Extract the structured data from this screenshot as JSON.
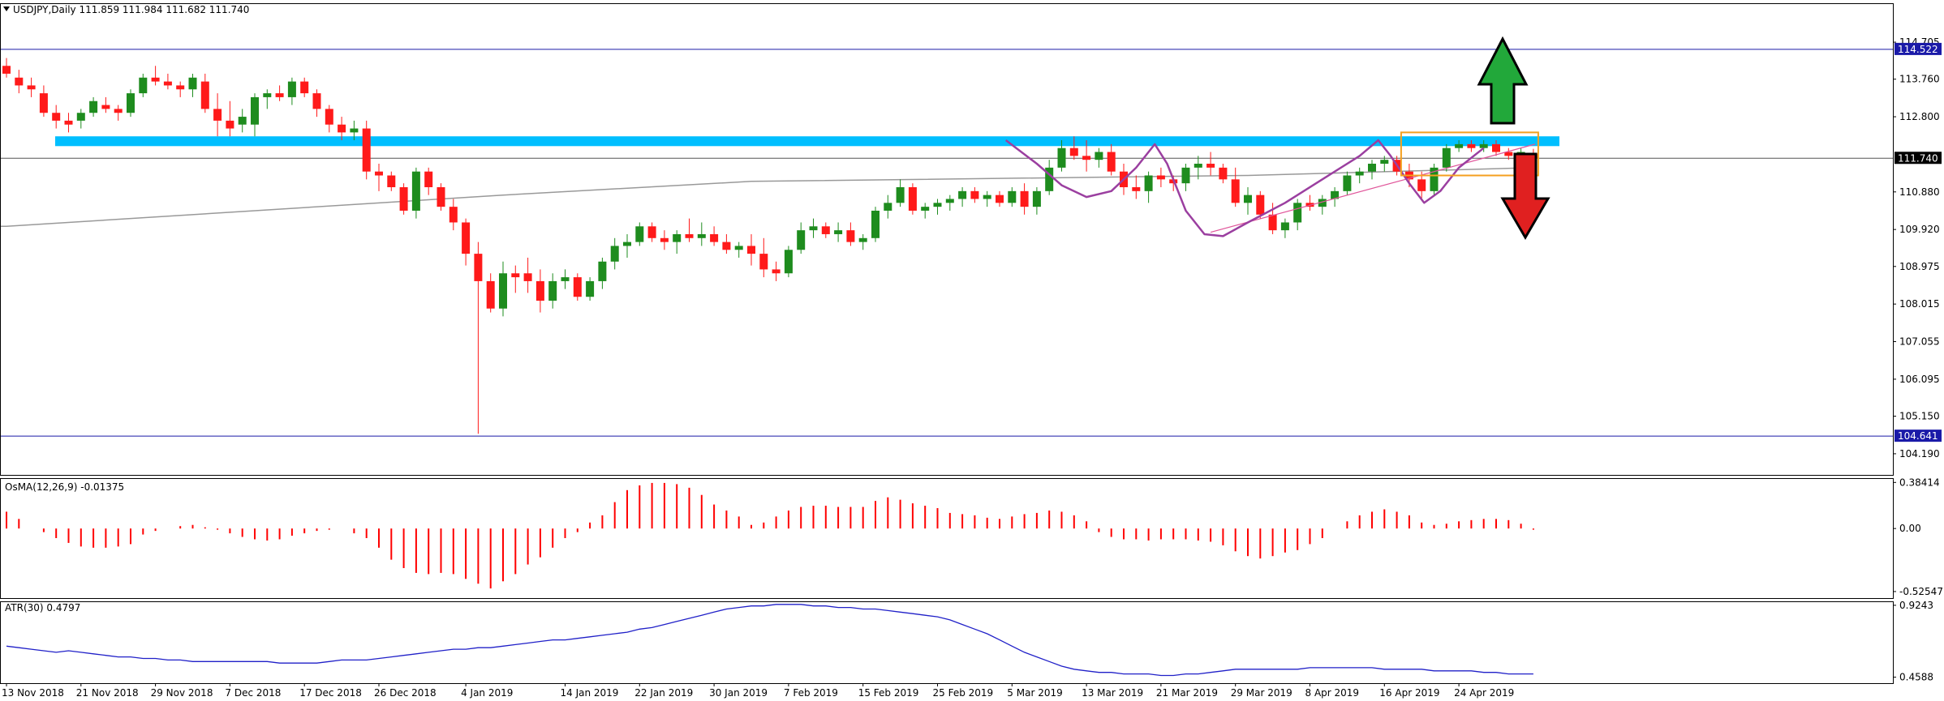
{
  "colors": {
    "up": "#1e8c1e",
    "down": "#ff1a1a",
    "resistance_zone": "#00bfff",
    "hline": "#1a1aa8",
    "ma": "#999999",
    "pattern": "#9b3fa0",
    "trendline": "#e0559a",
    "box": "#f4a020",
    "arrow_up": "#22a83a",
    "arrow_down": "#e02020",
    "atr": "#2020c8",
    "osma": "#ff0000"
  },
  "headers": {
    "price": "USDJPY,Daily  111.859 111.984 111.682 111.740",
    "osma": "OsMA(12,26,9) -0.01375",
    "atr": "ATR(30) 0.4797"
  },
  "chart_data": [
    {
      "type": "candlestick",
      "title": "USDJPY,Daily",
      "ohlc_readout": [
        111.859,
        111.984,
        111.682,
        111.74
      ],
      "y_ticks": [
        "114.705",
        "113.760",
        "112.800",
        "110.880",
        "109.920",
        "108.975",
        "108.015",
        "107.055",
        "106.095",
        "105.150",
        "104.190"
      ],
      "ylim": [
        103.65,
        115.7
      ],
      "current_price_tag": "111.740",
      "level_tags": [
        "114.522",
        "104.641"
      ],
      "x_ticks": [
        "13 Nov 2018",
        "21 Nov 2018",
        "29 Nov 2018",
        "7 Dec 2018",
        "17 Dec 2018",
        "26 Dec 2018",
        "4 Jan 2019",
        "14 Jan 2019",
        "22 Jan 2019",
        "30 Jan 2019",
        "7 Feb 2019",
        "15 Feb 2019",
        "25 Feb 2019",
        "5 Mar 2019",
        "13 Mar 2019",
        "21 Mar 2019",
        "29 Mar 2019",
        "8 Apr 2019",
        "16 Apr 2019",
        "24 Apr 2019"
      ],
      "candles": [
        [
          114.1,
          114.3,
          113.8,
          113.9
        ],
        [
          113.8,
          114.0,
          113.4,
          113.6
        ],
        [
          113.6,
          113.8,
          113.3,
          113.5
        ],
        [
          113.4,
          113.6,
          112.8,
          112.9
        ],
        [
          112.9,
          113.1,
          112.5,
          112.7
        ],
        [
          112.7,
          112.9,
          112.4,
          112.6
        ],
        [
          112.7,
          113.0,
          112.5,
          112.9
        ],
        [
          112.9,
          113.3,
          112.8,
          113.2
        ],
        [
          113.1,
          113.3,
          112.9,
          113.0
        ],
        [
          113.0,
          113.1,
          112.7,
          112.9
        ],
        [
          112.9,
          113.5,
          112.8,
          113.4
        ],
        [
          113.4,
          113.9,
          113.3,
          113.8
        ],
        [
          113.8,
          114.1,
          113.6,
          113.7
        ],
        [
          113.7,
          113.9,
          113.5,
          113.6
        ],
        [
          113.6,
          113.7,
          113.3,
          113.5
        ],
        [
          113.5,
          113.9,
          113.3,
          113.8
        ],
        [
          113.7,
          113.9,
          112.9,
          113.0
        ],
        [
          113.0,
          113.4,
          112.3,
          112.7
        ],
        [
          112.7,
          113.2,
          112.3,
          112.5
        ],
        [
          112.6,
          113.0,
          112.4,
          112.8
        ],
        [
          112.6,
          113.4,
          112.3,
          113.3
        ],
        [
          113.3,
          113.5,
          113.0,
          113.4
        ],
        [
          113.4,
          113.6,
          113.2,
          113.3
        ],
        [
          113.3,
          113.8,
          113.1,
          113.7
        ],
        [
          113.7,
          113.8,
          113.3,
          113.4
        ],
        [
          113.4,
          113.5,
          112.8,
          113.0
        ],
        [
          113.0,
          113.1,
          112.4,
          112.6
        ],
        [
          112.6,
          112.8,
          112.2,
          112.4
        ],
        [
          112.4,
          112.7,
          112.2,
          112.5
        ],
        [
          112.5,
          112.7,
          111.2,
          111.4
        ],
        [
          111.4,
          111.6,
          110.9,
          111.3
        ],
        [
          111.3,
          111.4,
          110.9,
          111.0
        ],
        [
          111.0,
          111.1,
          110.3,
          110.4
        ],
        [
          110.4,
          111.5,
          110.2,
          111.4
        ],
        [
          111.4,
          111.5,
          110.8,
          111.0
        ],
        [
          111.0,
          111.1,
          110.4,
          110.5
        ],
        [
          110.5,
          110.7,
          109.9,
          110.1
        ],
        [
          110.1,
          110.2,
          109.0,
          109.3
        ],
        [
          109.3,
          109.6,
          104.7,
          108.6
        ],
        [
          108.6,
          108.8,
          107.8,
          107.9
        ],
        [
          107.9,
          109.1,
          107.7,
          108.8
        ],
        [
          108.8,
          109.0,
          108.3,
          108.7
        ],
        [
          108.8,
          109.2,
          108.3,
          108.6
        ],
        [
          108.6,
          108.9,
          107.8,
          108.1
        ],
        [
          108.1,
          108.8,
          107.9,
          108.6
        ],
        [
          108.6,
          108.9,
          108.4,
          108.7
        ],
        [
          108.7,
          108.8,
          108.1,
          108.2
        ],
        [
          108.2,
          108.7,
          108.1,
          108.6
        ],
        [
          108.6,
          109.2,
          108.4,
          109.1
        ],
        [
          109.1,
          109.7,
          108.9,
          109.5
        ],
        [
          109.5,
          109.8,
          109.2,
          109.6
        ],
        [
          109.6,
          110.1,
          109.5,
          110.0
        ],
        [
          110.0,
          110.1,
          109.6,
          109.7
        ],
        [
          109.7,
          109.9,
          109.4,
          109.6
        ],
        [
          109.6,
          109.9,
          109.3,
          109.8
        ],
        [
          109.8,
          110.2,
          109.6,
          109.7
        ],
        [
          109.7,
          110.1,
          109.5,
          109.8
        ],
        [
          109.8,
          110.0,
          109.5,
          109.6
        ],
        [
          109.6,
          109.8,
          109.3,
          109.4
        ],
        [
          109.4,
          109.6,
          109.2,
          109.5
        ],
        [
          109.5,
          109.8,
          109.0,
          109.3
        ],
        [
          109.3,
          109.7,
          108.7,
          108.9
        ],
        [
          108.9,
          109.1,
          108.6,
          108.8
        ],
        [
          108.8,
          109.5,
          108.7,
          109.4
        ],
        [
          109.4,
          110.1,
          109.3,
          109.9
        ],
        [
          109.9,
          110.2,
          109.7,
          110.0
        ],
        [
          110.0,
          110.1,
          109.7,
          109.8
        ],
        [
          109.8,
          110.1,
          109.6,
          109.9
        ],
        [
          109.9,
          110.1,
          109.5,
          109.6
        ],
        [
          109.6,
          109.8,
          109.4,
          109.7
        ],
        [
          109.7,
          110.5,
          109.6,
          110.4
        ],
        [
          110.4,
          110.8,
          110.2,
          110.6
        ],
        [
          110.6,
          111.2,
          110.5,
          111.0
        ],
        [
          111.0,
          111.1,
          110.3,
          110.4
        ],
        [
          110.4,
          110.6,
          110.2,
          110.5
        ],
        [
          110.5,
          110.7,
          110.3,
          110.6
        ],
        [
          110.6,
          110.8,
          110.4,
          110.7
        ],
        [
          110.7,
          111.0,
          110.5,
          110.9
        ],
        [
          110.9,
          111.0,
          110.6,
          110.7
        ],
        [
          110.7,
          110.9,
          110.5,
          110.8
        ],
        [
          110.8,
          110.9,
          110.5,
          110.6
        ],
        [
          110.6,
          111.0,
          110.5,
          110.9
        ],
        [
          110.9,
          111.1,
          110.3,
          110.5
        ],
        [
          110.5,
          111.0,
          110.3,
          110.9
        ],
        [
          110.9,
          111.7,
          110.8,
          111.5
        ],
        [
          111.5,
          112.2,
          111.4,
          112.0
        ],
        [
          112.0,
          112.3,
          111.7,
          111.8
        ],
        [
          111.8,
          112.2,
          111.4,
          111.7
        ],
        [
          111.7,
          112.0,
          111.5,
          111.9
        ],
        [
          111.9,
          112.1,
          111.3,
          111.4
        ],
        [
          111.4,
          111.6,
          110.8,
          111.0
        ],
        [
          111.0,
          111.3,
          110.7,
          110.9
        ],
        [
          110.9,
          111.4,
          110.6,
          111.3
        ],
        [
          111.3,
          111.5,
          111.0,
          111.2
        ],
        [
          111.2,
          111.3,
          110.9,
          111.1
        ],
        [
          111.1,
          111.6,
          110.9,
          111.5
        ],
        [
          111.5,
          111.8,
          111.2,
          111.6
        ],
        [
          111.6,
          111.9,
          111.3,
          111.5
        ],
        [
          111.5,
          111.6,
          111.1,
          111.2
        ],
        [
          111.2,
          111.5,
          110.5,
          110.6
        ],
        [
          110.6,
          111.0,
          110.3,
          110.8
        ],
        [
          110.8,
          110.9,
          110.2,
          110.3
        ],
        [
          110.3,
          110.6,
          109.8,
          109.9
        ],
        [
          109.9,
          110.2,
          109.7,
          110.1
        ],
        [
          110.1,
          110.7,
          109.9,
          110.6
        ],
        [
          110.6,
          110.8,
          110.4,
          110.5
        ],
        [
          110.5,
          110.8,
          110.3,
          110.7
        ],
        [
          110.7,
          111.0,
          110.5,
          110.9
        ],
        [
          110.9,
          111.4,
          110.8,
          111.3
        ],
        [
          111.3,
          111.5,
          111.1,
          111.4
        ],
        [
          111.4,
          111.7,
          111.2,
          111.6
        ],
        [
          111.6,
          111.8,
          111.4,
          111.7
        ],
        [
          111.7,
          111.8,
          111.3,
          111.4
        ],
        [
          111.4,
          111.6,
          111.0,
          111.2
        ],
        [
          111.2,
          111.4,
          110.7,
          110.9
        ],
        [
          110.9,
          111.6,
          110.8,
          111.5
        ],
        [
          111.5,
          112.1,
          111.4,
          112.0
        ],
        [
          112.0,
          112.2,
          111.9,
          112.1
        ],
        [
          112.1,
          112.2,
          111.9,
          112.0
        ],
        [
          112.0,
          112.2,
          111.9,
          112.1
        ],
        [
          112.1,
          112.2,
          111.8,
          111.9
        ],
        [
          111.9,
          112.0,
          111.7,
          111.8
        ],
        [
          111.8,
          112.0,
          111.7,
          111.9
        ],
        [
          111.86,
          111.98,
          111.68,
          111.74
        ]
      ],
      "ma_line": [
        [
          0,
          110.0
        ],
        [
          40,
          110.8
        ],
        [
          60,
          111.15
        ],
        [
          100,
          111.3
        ],
        [
          123,
          111.5
        ]
      ],
      "horizontal_levels": [
        114.522,
        104.641,
        111.74
      ],
      "resistance_zone": [
        112.05,
        112.3
      ],
      "consolidation_box": {
        "from_candle": 113,
        "to_candle": 123,
        "low": 111.3,
        "high": 112.4
      }
    },
    {
      "type": "bar",
      "title": "OsMA(12,26,9)",
      "last_value": -0.01375,
      "y_ticks": [
        "0.38414",
        "0.00",
        "-0.52547"
      ],
      "ylim": [
        -0.58,
        0.42
      ],
      "values": [
        0.14,
        0.08,
        0.0,
        -0.03,
        -0.08,
        -0.12,
        -0.15,
        -0.16,
        -0.16,
        -0.15,
        -0.13,
        -0.05,
        -0.02,
        0.0,
        0.02,
        0.03,
        0.01,
        -0.01,
        -0.04,
        -0.07,
        -0.09,
        -0.1,
        -0.09,
        -0.06,
        -0.04,
        -0.02,
        -0.01,
        0.0,
        -0.04,
        -0.08,
        -0.16,
        -0.26,
        -0.33,
        -0.37,
        -0.38,
        -0.37,
        -0.38,
        -0.42,
        -0.46,
        -0.5,
        -0.44,
        -0.38,
        -0.3,
        -0.24,
        -0.16,
        -0.08,
        -0.03,
        0.05,
        0.11,
        0.22,
        0.32,
        0.36,
        0.38,
        0.38,
        0.37,
        0.34,
        0.28,
        0.2,
        0.15,
        0.1,
        0.03,
        0.05,
        0.1,
        0.15,
        0.18,
        0.19,
        0.19,
        0.18,
        0.18,
        0.18,
        0.23,
        0.26,
        0.24,
        0.21,
        0.19,
        0.17,
        0.13,
        0.12,
        0.11,
        0.09,
        0.08,
        0.1,
        0.12,
        0.13,
        0.15,
        0.14,
        0.11,
        0.06,
        -0.03,
        -0.07,
        -0.09,
        -0.09,
        -0.1,
        -0.09,
        -0.09,
        -0.09,
        -0.1,
        -0.11,
        -0.14,
        -0.19,
        -0.23,
        -0.25,
        -0.23,
        -0.2,
        -0.18,
        -0.13,
        -0.08,
        0.0,
        0.06,
        0.11,
        0.14,
        0.16,
        0.14,
        0.11,
        0.05,
        0.03,
        0.04,
        0.06,
        0.07,
        0.08,
        0.08,
        0.07,
        0.04,
        -0.01
      ]
    },
    {
      "type": "line",
      "title": "ATR(30)",
      "last_value": 0.4797,
      "y_ticks": [
        "0.9243",
        "0.4588"
      ],
      "ylim": [
        0.42,
        0.95
      ],
      "values": [
        0.66,
        0.65,
        0.64,
        0.63,
        0.62,
        0.63,
        0.62,
        0.61,
        0.6,
        0.59,
        0.59,
        0.58,
        0.58,
        0.57,
        0.57,
        0.56,
        0.56,
        0.56,
        0.56,
        0.56,
        0.56,
        0.56,
        0.55,
        0.55,
        0.55,
        0.55,
        0.56,
        0.57,
        0.57,
        0.57,
        0.58,
        0.59,
        0.6,
        0.61,
        0.62,
        0.63,
        0.64,
        0.64,
        0.65,
        0.65,
        0.66,
        0.67,
        0.68,
        0.69,
        0.7,
        0.7,
        0.71,
        0.72,
        0.73,
        0.74,
        0.75,
        0.77,
        0.78,
        0.8,
        0.82,
        0.84,
        0.86,
        0.88,
        0.9,
        0.91,
        0.92,
        0.92,
        0.93,
        0.93,
        0.93,
        0.92,
        0.92,
        0.91,
        0.91,
        0.9,
        0.9,
        0.89,
        0.88,
        0.87,
        0.86,
        0.85,
        0.83,
        0.8,
        0.77,
        0.74,
        0.7,
        0.66,
        0.62,
        0.59,
        0.56,
        0.53,
        0.51,
        0.5,
        0.49,
        0.49,
        0.48,
        0.48,
        0.48,
        0.47,
        0.47,
        0.48,
        0.48,
        0.49,
        0.5,
        0.51,
        0.51,
        0.51,
        0.51,
        0.51,
        0.51,
        0.52,
        0.52,
        0.52,
        0.52,
        0.52,
        0.52,
        0.51,
        0.51,
        0.51,
        0.51,
        0.5,
        0.5,
        0.5,
        0.5,
        0.49,
        0.49,
        0.48,
        0.48,
        0.48
      ]
    }
  ]
}
